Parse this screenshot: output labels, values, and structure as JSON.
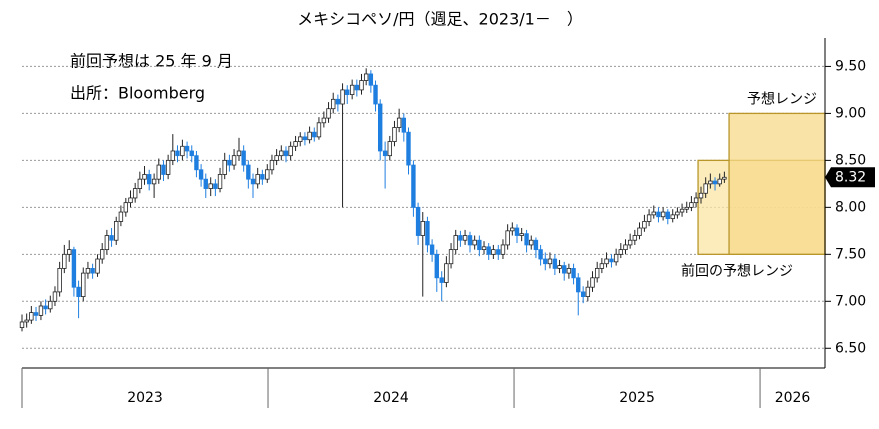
{
  "chart_data": {
    "type": "candlestick",
    "title": "メキシコペソ/円（週足、2023/1－　）",
    "annotations": [
      "前回予想は 25 年 9 月",
      "出所：Bloomberg"
    ],
    "xlim": [
      2023,
      2026.264
    ],
    "xticks": [
      {
        "value": 2023,
        "label": "2023"
      },
      {
        "value": 2024,
        "label": "2024"
      },
      {
        "value": 2025,
        "label": "2025"
      },
      {
        "value": 2026,
        "label": "2026"
      }
    ],
    "ylim": [
      6.29,
      9.76
    ],
    "yticks": [
      {
        "value": 6.5,
        "label": "6.50"
      },
      {
        "value": 7,
        "label": "7.00"
      },
      {
        "value": 7.5,
        "label": "7.50"
      },
      {
        "value": 8,
        "label": "8.00"
      },
      {
        "value": 8.5,
        "label": "8.50"
      },
      {
        "value": 9,
        "label": "9.00"
      },
      {
        "value": 9.5,
        "label": "9.50"
      }
    ],
    "grid": true,
    "up_color": "#ffffff",
    "down_color": "#1f7fe0",
    "x": [
      2023.0,
      2023.019,
      2023.038,
      2023.057,
      2023.077,
      2023.096,
      2023.115,
      2023.134,
      2023.153,
      2023.172,
      2023.192,
      2023.211,
      2023.23,
      2023.249,
      2023.268,
      2023.287,
      2023.307,
      2023.326,
      2023.345,
      2023.364,
      2023.383,
      2023.402,
      2023.422,
      2023.441,
      2023.46,
      2023.479,
      2023.498,
      2023.517,
      2023.537,
      2023.556,
      2023.575,
      2023.594,
      2023.613,
      2023.632,
      2023.652,
      2023.671,
      2023.69,
      2023.709,
      2023.728,
      2023.747,
      2023.767,
      2023.786,
      2023.805,
      2023.824,
      2023.843,
      2023.862,
      2023.882,
      2023.901,
      2023.92,
      2023.939,
      2023.958,
      2023.977,
      2023.997,
      2024.016,
      2024.035,
      2024.054,
      2024.073,
      2024.092,
      2024.112,
      2024.131,
      2024.15,
      2024.169,
      2024.188,
      2024.207,
      2024.227,
      2024.246,
      2024.265,
      2024.284,
      2024.303,
      2024.322,
      2024.342,
      2024.361,
      2024.38,
      2024.399,
      2024.418,
      2024.437,
      2024.456,
      2024.476,
      2024.495,
      2024.514,
      2024.533,
      2024.552,
      2024.571,
      2024.591,
      2024.61,
      2024.629,
      2024.648,
      2024.667,
      2024.686,
      2024.706,
      2024.725,
      2024.744,
      2024.763,
      2024.782,
      2024.801,
      2024.821,
      2024.84,
      2024.859,
      2024.878,
      2024.897,
      2024.916,
      2024.936,
      2024.955,
      2024.974,
      2024.993,
      2025.012,
      2025.031,
      2025.051,
      2025.07,
      2025.089,
      2025.108,
      2025.127,
      2025.146,
      2025.166,
      2025.185,
      2025.204,
      2025.223,
      2025.242,
      2025.261,
      2025.281,
      2025.3,
      2025.319,
      2025.338,
      2025.357,
      2025.376,
      2025.396,
      2025.415,
      2025.434,
      2025.453,
      2025.472,
      2025.491,
      2025.51,
      2025.53,
      2025.549,
      2025.568,
      2025.587,
      2025.606,
      2025.625,
      2025.645,
      2025.664,
      2025.683,
      2025.702,
      2025.721,
      2025.74,
      2025.76,
      2025.779,
      2025.798,
      2025.817,
      2025.836,
      2025.855
    ],
    "open": [
      6.72,
      6.78,
      6.8,
      6.88,
      6.85,
      6.95,
      6.92,
      7.0,
      7.1,
      7.35,
      7.5,
      7.55,
      7.15,
      7.05,
      7.3,
      7.35,
      7.3,
      7.45,
      7.55,
      7.7,
      7.65,
      7.85,
      7.95,
      8.05,
      8.1,
      8.2,
      8.3,
      8.35,
      8.25,
      8.3,
      8.45,
      8.35,
      8.5,
      8.6,
      8.55,
      8.65,
      8.6,
      8.55,
      8.4,
      8.3,
      8.2,
      8.25,
      8.2,
      8.35,
      8.5,
      8.45,
      8.55,
      8.6,
      8.45,
      8.3,
      8.25,
      8.35,
      8.3,
      8.4,
      8.5,
      8.55,
      8.6,
      8.55,
      8.65,
      8.7,
      8.75,
      8.72,
      8.8,
      8.75,
      8.9,
      8.95,
      9.05,
      9.15,
      9.1,
      9.25,
      9.2,
      9.3,
      9.25,
      9.35,
      9.42,
      9.3,
      9.1,
      8.6,
      8.55,
      8.7,
      8.85,
      8.95,
      8.8,
      8.45,
      8.0,
      7.7,
      7.85,
      7.6,
      7.5,
      7.25,
      7.2,
      7.4,
      7.55,
      7.7,
      7.65,
      7.7,
      7.6,
      7.65,
      7.55,
      7.58,
      7.5,
      7.55,
      7.5,
      7.6,
      7.75,
      7.78,
      7.7,
      7.72,
      7.6,
      7.65,
      7.55,
      7.45,
      7.4,
      7.45,
      7.35,
      7.38,
      7.3,
      7.35,
      7.25,
      7.1,
      7.05,
      7.15,
      7.25,
      7.35,
      7.4,
      7.45,
      7.42,
      7.5,
      7.55,
      7.6,
      7.65,
      7.7,
      7.78,
      7.85,
      7.92,
      7.95,
      7.9,
      7.95,
      7.88,
      7.92,
      7.95,
      7.98,
      8.0,
      8.05,
      8.1,
      8.15,
      8.25,
      8.28,
      8.25,
      8.3
    ],
    "high": [
      6.86,
      6.87,
      6.95,
      6.94,
      7.0,
      7.02,
      7.06,
      7.16,
      7.42,
      7.6,
      7.65,
      7.58,
      7.22,
      7.36,
      7.42,
      7.4,
      7.5,
      7.62,
      7.76,
      7.78,
      7.9,
      8.02,
      8.1,
      8.18,
      8.26,
      8.38,
      8.44,
      8.4,
      8.36,
      8.52,
      8.5,
      8.56,
      8.78,
      8.66,
      8.72,
      8.7,
      8.66,
      8.6,
      8.46,
      8.36,
      8.32,
      8.3,
      8.42,
      8.58,
      8.56,
      8.62,
      8.74,
      8.66,
      8.5,
      8.36,
      8.42,
      8.4,
      8.46,
      8.56,
      8.62,
      8.66,
      8.65,
      8.7,
      8.76,
      8.8,
      8.8,
      8.86,
      8.85,
      8.96,
      9.02,
      9.12,
      9.22,
      9.2,
      9.32,
      9.3,
      9.36,
      9.36,
      9.42,
      9.48,
      9.46,
      9.35,
      9.15,
      8.7,
      8.76,
      8.92,
      9.05,
      9.0,
      8.85,
      8.5,
      8.05,
      7.95,
      7.9,
      7.66,
      7.55,
      7.32,
      7.48,
      7.62,
      7.76,
      7.75,
      7.76,
      7.74,
      7.7,
      7.7,
      7.64,
      7.62,
      7.6,
      7.6,
      7.66,
      7.82,
      7.84,
      7.82,
      7.78,
      7.76,
      7.7,
      7.68,
      7.6,
      7.52,
      7.52,
      7.5,
      7.44,
      7.42,
      7.4,
      7.4,
      7.3,
      7.16,
      7.22,
      7.32,
      7.42,
      7.46,
      7.52,
      7.5,
      7.56,
      7.62,
      7.66,
      7.72,
      7.76,
      7.84,
      7.92,
      7.98,
      8.02,
      8.0,
      8.0,
      7.98,
      7.98,
      8.0,
      8.04,
      8.06,
      8.12,
      8.16,
      8.22,
      8.32,
      8.36,
      8.32,
      8.36,
      8.38
    ],
    "low": [
      6.68,
      6.72,
      6.76,
      6.79,
      6.8,
      6.86,
      6.88,
      6.95,
      7.05,
      7.3,
      7.42,
      7.05,
      6.82,
      7.0,
      7.24,
      7.24,
      7.26,
      7.4,
      7.5,
      7.58,
      7.6,
      7.8,
      7.9,
      8.0,
      8.05,
      8.15,
      8.24,
      8.18,
      8.1,
      8.25,
      8.28,
      8.3,
      8.45,
      8.48,
      8.5,
      8.52,
      8.48,
      8.32,
      8.22,
      8.1,
      8.12,
      8.12,
      8.16,
      8.3,
      8.38,
      8.4,
      8.5,
      8.38,
      8.2,
      8.1,
      8.2,
      8.24,
      8.26,
      8.35,
      8.45,
      8.5,
      8.48,
      8.5,
      8.6,
      8.65,
      8.66,
      8.68,
      8.7,
      8.72,
      8.85,
      8.9,
      9.0,
      9.02,
      8.0,
      9.1,
      9.15,
      9.18,
      9.2,
      9.3,
      9.22,
      9.02,
      8.5,
      8.2,
      8.5,
      8.65,
      8.8,
      8.7,
      8.35,
      7.9,
      7.6,
      7.05,
      7.52,
      7.42,
      7.1,
      7.0,
      7.15,
      7.35,
      7.5,
      7.58,
      7.6,
      7.52,
      7.55,
      7.48,
      7.5,
      7.44,
      7.45,
      7.44,
      7.45,
      7.55,
      7.7,
      7.62,
      7.64,
      7.52,
      7.55,
      7.46,
      7.38,
      7.33,
      7.35,
      7.28,
      7.3,
      7.22,
      7.24,
      7.18,
      6.85,
      6.98,
      7.0,
      7.1,
      7.2,
      7.3,
      7.36,
      7.36,
      7.38,
      7.46,
      7.5,
      7.56,
      7.6,
      7.66,
      7.74,
      7.8,
      7.88,
      7.84,
      7.86,
      7.82,
      7.84,
      7.88,
      7.9,
      7.94,
      7.96,
      8.0,
      8.04,
      8.1,
      8.2,
      8.18,
      8.22,
      8.26
    ],
    "close": [
      6.78,
      6.8,
      6.88,
      6.85,
      6.95,
      6.92,
      7.0,
      7.1,
      7.35,
      7.5,
      7.55,
      7.15,
      7.05,
      7.3,
      7.35,
      7.3,
      7.45,
      7.55,
      7.7,
      7.65,
      7.85,
      7.95,
      8.05,
      8.1,
      8.2,
      8.3,
      8.35,
      8.25,
      8.3,
      8.45,
      8.35,
      8.5,
      8.6,
      8.55,
      8.65,
      8.6,
      8.55,
      8.4,
      8.3,
      8.2,
      8.25,
      8.2,
      8.35,
      8.5,
      8.45,
      8.55,
      8.6,
      8.45,
      8.3,
      8.25,
      8.35,
      8.3,
      8.4,
      8.5,
      8.55,
      8.6,
      8.55,
      8.65,
      8.7,
      8.75,
      8.72,
      8.8,
      8.75,
      8.9,
      8.95,
      9.05,
      9.15,
      9.1,
      9.25,
      9.2,
      9.3,
      9.25,
      9.35,
      9.42,
      9.3,
      9.1,
      8.6,
      8.55,
      8.7,
      8.85,
      8.95,
      8.8,
      8.45,
      8.0,
      7.7,
      7.85,
      7.6,
      7.5,
      7.25,
      7.2,
      7.4,
      7.55,
      7.7,
      7.65,
      7.7,
      7.6,
      7.65,
      7.55,
      7.58,
      7.5,
      7.55,
      7.5,
      7.6,
      7.75,
      7.78,
      7.7,
      7.72,
      7.6,
      7.65,
      7.55,
      7.45,
      7.4,
      7.45,
      7.35,
      7.38,
      7.3,
      7.35,
      7.25,
      7.1,
      7.05,
      7.15,
      7.25,
      7.35,
      7.4,
      7.45,
      7.42,
      7.5,
      7.55,
      7.6,
      7.65,
      7.7,
      7.78,
      7.85,
      7.92,
      7.95,
      7.9,
      7.95,
      7.88,
      7.92,
      7.95,
      7.98,
      8.0,
      8.05,
      8.1,
      8.15,
      8.25,
      8.28,
      8.25,
      8.3,
      8.32
    ],
    "ranges": [
      {
        "label": "前回の予想レンジ",
        "x": [
          2025.748,
          2026.264
        ],
        "y": [
          7.5,
          8.5
        ],
        "color": "#fbe6a6"
      },
      {
        "label": "予想レンジ",
        "x": [
          2025.874,
          2026.264
        ],
        "y": [
          7.5,
          9.0
        ],
        "color": "#f7d98a"
      }
    ]
  }
}
